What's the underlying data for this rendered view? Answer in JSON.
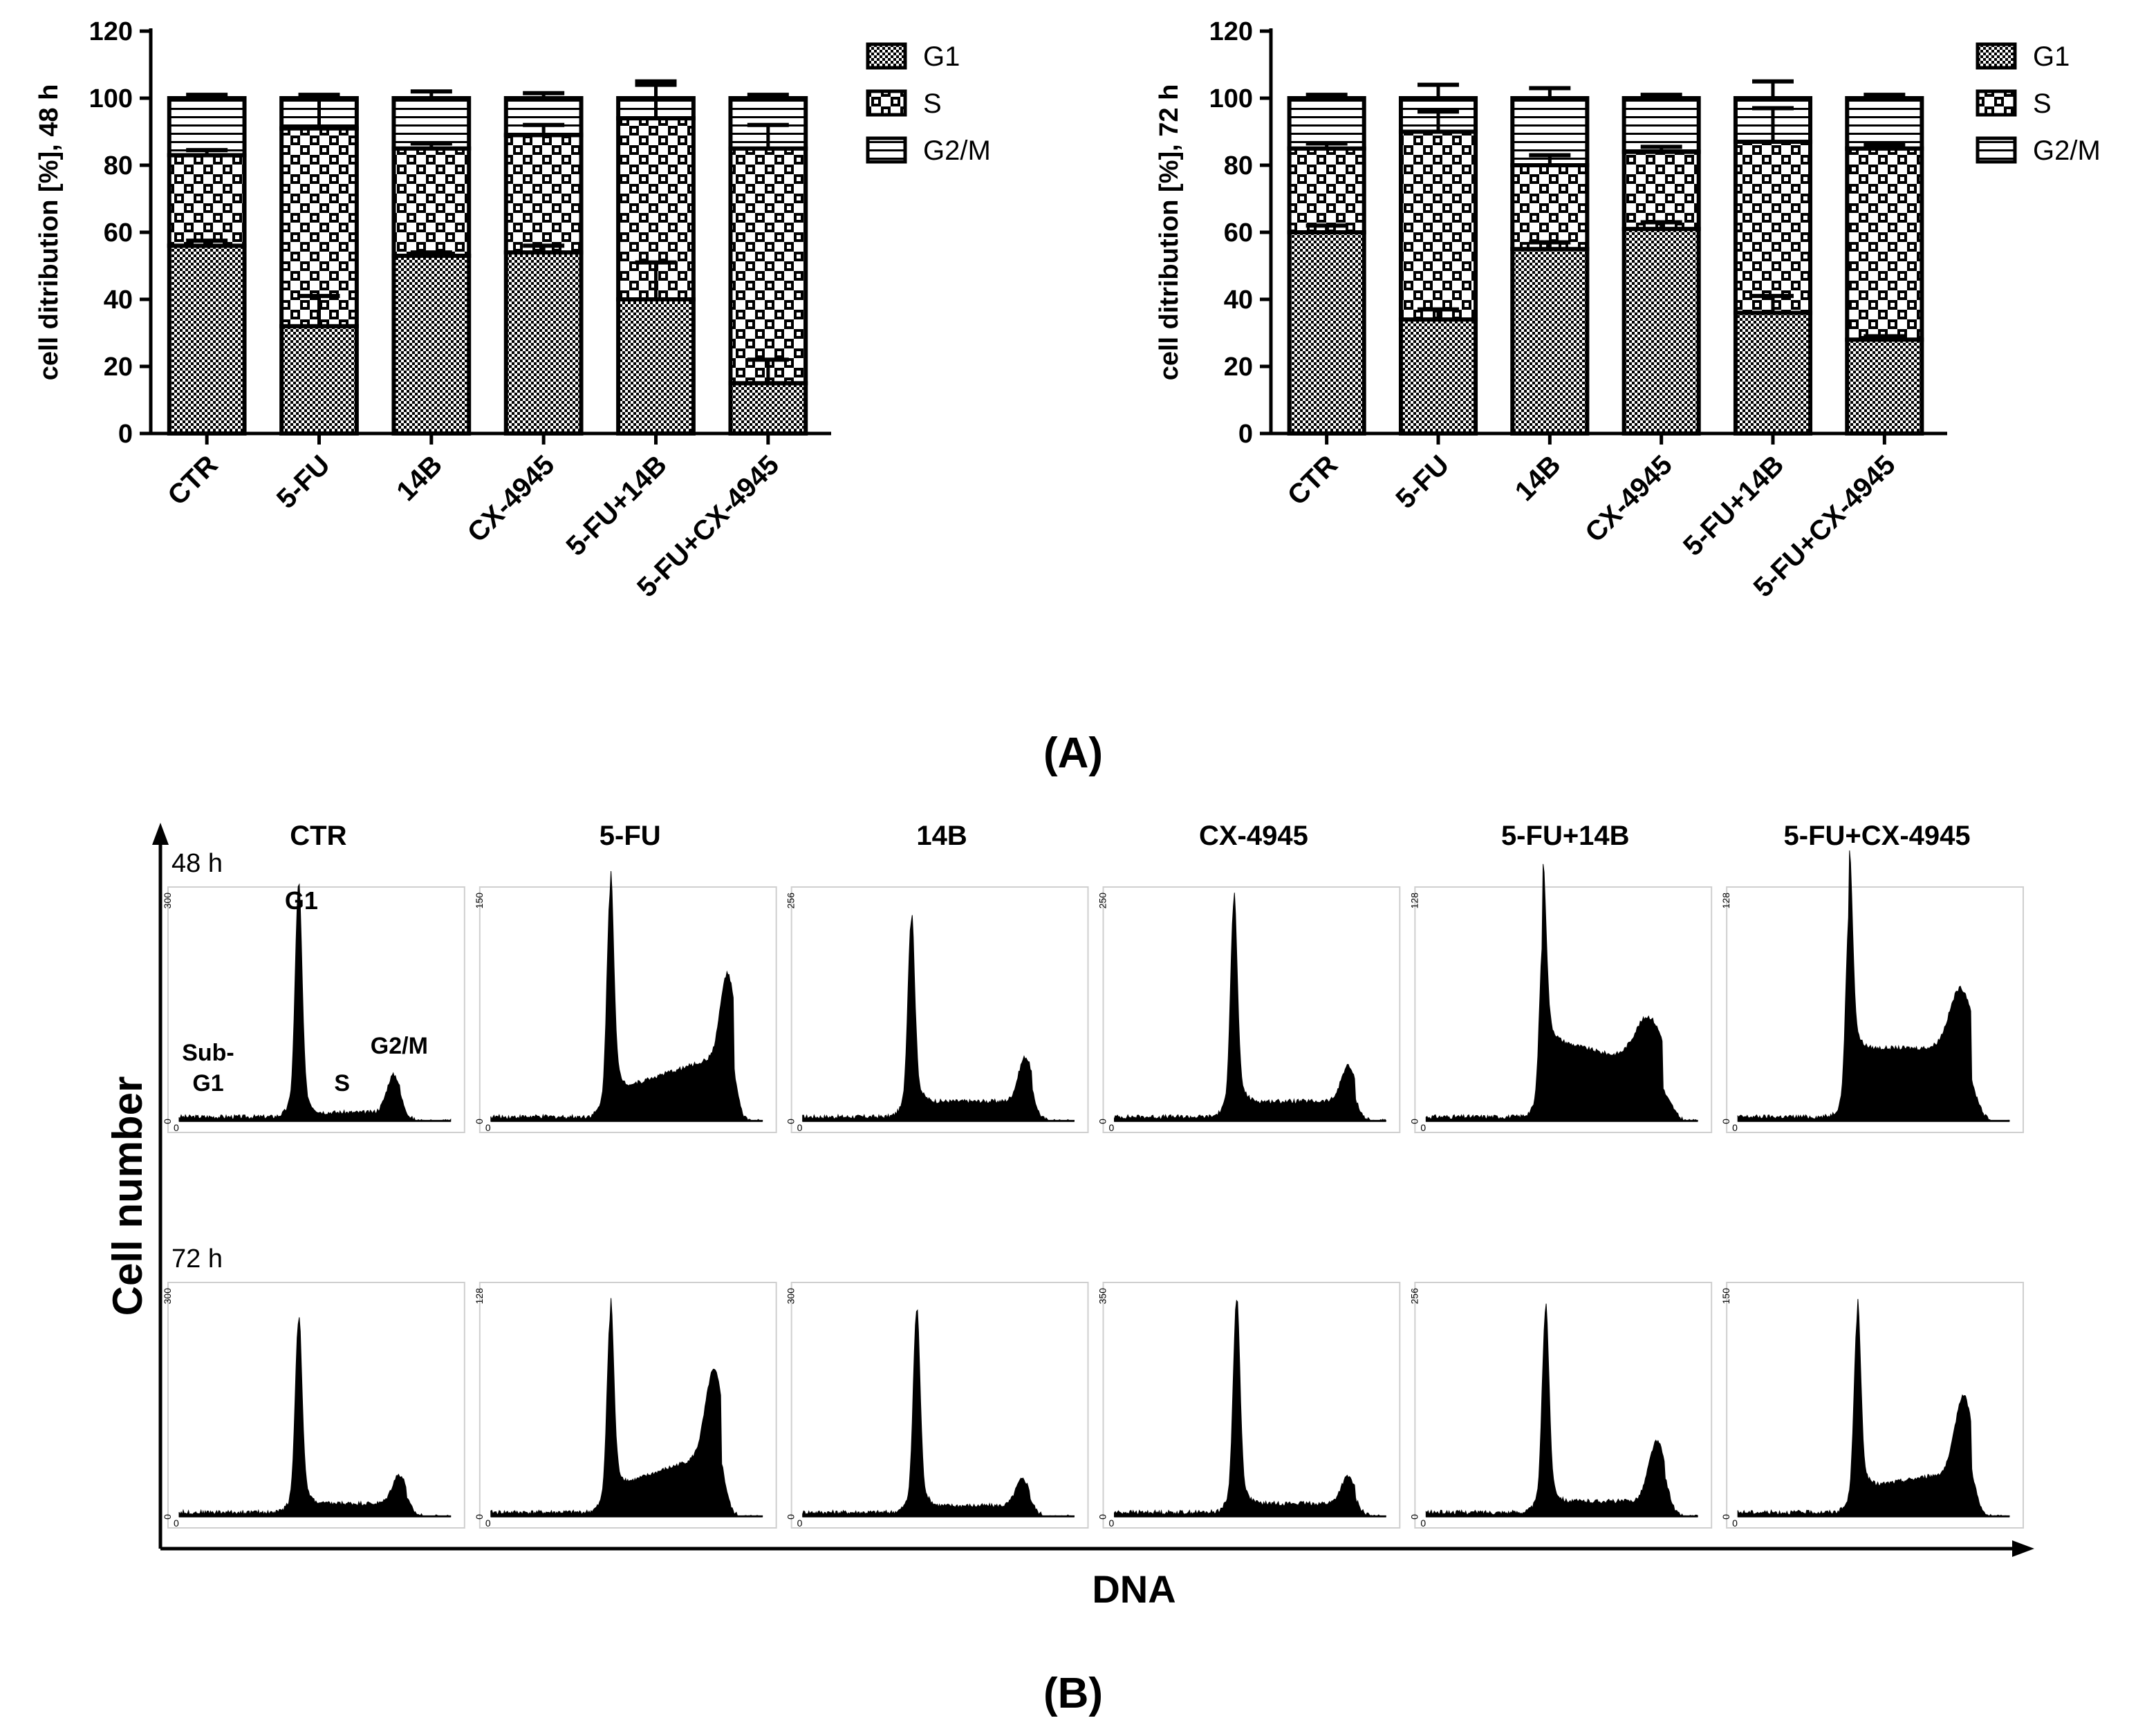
{
  "panel_A_label": "(A)",
  "panel_B_label": "(B)",
  "colors": {
    "black": "#000000",
    "white": "#ffffff"
  },
  "legend": {
    "items": [
      "G1",
      "S",
      "G2/M"
    ],
    "patterns": [
      "fine-check-pattern",
      "coarse-check-pattern",
      "horizontal-line-pattern"
    ]
  },
  "chart_data": [
    {
      "type": "bar",
      "stacked": true,
      "title": "",
      "ylabel": "cell ditribution [%], 48 h",
      "xlabel": "",
      "ylim": [
        0,
        120
      ],
      "yticks": [
        0,
        20,
        40,
        60,
        80,
        100,
        120
      ],
      "categories": [
        "CTR",
        "5-FU",
        "14B",
        "CX-4945",
        "5-FU+14B",
        "5-FU+CX-4945"
      ],
      "series": [
        {
          "name": "G1",
          "values": [
            56,
            32,
            53,
            54,
            40,
            15
          ],
          "errors": [
            1.5,
            9,
            1,
            2,
            11,
            7
          ]
        },
        {
          "name": "S",
          "values": [
            27,
            59,
            32,
            35,
            54,
            70
          ],
          "errors": [
            1.5,
            9,
            1.5,
            3,
            11,
            7
          ]
        },
        {
          "name": "G2/M",
          "values": [
            17,
            9,
            15,
            11,
            6,
            15
          ],
          "errors": [
            1,
            1,
            2,
            1.5,
            4,
            1
          ]
        }
      ],
      "legend_position": "top-right"
    },
    {
      "type": "bar",
      "stacked": true,
      "title": "",
      "ylabel": "cell ditribution [%], 72 h",
      "xlabel": "",
      "ylim": [
        0,
        120
      ],
      "yticks": [
        0,
        20,
        40,
        60,
        80,
        100,
        120
      ],
      "categories": [
        "CTR",
        "5-FU",
        "14B",
        "CX-4945",
        "5-FU+14B",
        "5-FU+CX-4945"
      ],
      "series": [
        {
          "name": "G1",
          "values": [
            60,
            34,
            55,
            61,
            36,
            28
          ],
          "errors": [
            2,
            3,
            2,
            2,
            5,
            1
          ]
        },
        {
          "name": "S",
          "values": [
            25,
            56,
            25,
            23,
            51,
            57
          ],
          "errors": [
            1.5,
            6,
            3,
            1.5,
            10,
            1
          ]
        },
        {
          "name": "G2/M",
          "values": [
            15,
            10,
            20,
            16,
            13,
            15
          ],
          "errors": [
            1,
            4,
            3,
            1,
            5,
            1
          ]
        }
      ],
      "legend_position": "top-right"
    },
    {
      "type": "histogram-grid",
      "xlabel": "DNA",
      "ylabel": "Cell number",
      "columns": [
        "CTR",
        "5-FU",
        "14B",
        "CX-4945",
        "5-FU+14B",
        "5-FU+CX-4945"
      ],
      "rows": [
        "48 h",
        "72 h"
      ],
      "phase_labels": [
        "G1",
        "Sub-\nG1",
        "S",
        "G2/M"
      ],
      "x_axis_zero": "0",
      "y_max_labels": [
        [
          "300",
          "150",
          "256",
          "250",
          "128",
          "128"
        ],
        [
          "300",
          "128",
          "300",
          "350",
          "256",
          "150"
        ]
      ],
      "profiles": [
        [
          {
            "g1_pos": 0.44,
            "g1_height": 0.93,
            "s_level": 0.02,
            "g2_pos": 0.79,
            "g2_height": 0.17,
            "g2_width": 0.025,
            "s_ramp": 0
          },
          {
            "g1_pos": 0.44,
            "g1_height": 0.91,
            "s_level": 0.19,
            "g2_pos": 0.87,
            "g2_height": 0.36,
            "g2_width": 0.025,
            "s_ramp": 1
          },
          {
            "g1_pos": 0.4,
            "g1_height": 0.79,
            "s_level": 0.07,
            "g2_pos": 0.82,
            "g2_height": 0.2,
            "g2_width": 0.025,
            "s_ramp": 0
          },
          {
            "g1_pos": 0.44,
            "g1_height": 0.85,
            "s_level": 0.07,
            "g2_pos": 0.86,
            "g2_height": 0.16,
            "g2_width": 0.025,
            "s_ramp": 0
          },
          {
            "g1_pos": 0.43,
            "g1_height": 0.7,
            "s_level": 0.33,
            "g2_pos": 0.82,
            "g2_height": 0.22,
            "g2_width": 0.05,
            "s_ramp": -1
          },
          {
            "g1_pos": 0.41,
            "g1_height": 0.81,
            "s_level": 0.31,
            "g2_pos": 0.82,
            "g2_height": 0.27,
            "g2_width": 0.04,
            "s_ramp": 0
          }
        ],
        [
          {
            "g1_pos": 0.44,
            "g1_height": 0.77,
            "s_level": 0.04,
            "g2_pos": 0.81,
            "g2_height": 0.13,
            "g2_width": 0.025,
            "s_ramp": 0
          },
          {
            "g1_pos": 0.44,
            "g1_height": 0.78,
            "s_level": 0.18,
            "g2_pos": 0.82,
            "g2_height": 0.37,
            "g2_width": 0.03,
            "s_ramp": 1
          },
          {
            "g1_pos": 0.42,
            "g1_height": 0.81,
            "s_level": 0.03,
            "g2_pos": 0.81,
            "g2_height": 0.12,
            "g2_width": 0.025,
            "s_ramp": 0
          },
          {
            "g1_pos": 0.45,
            "g1_height": 0.85,
            "s_level": 0.04,
            "g2_pos": 0.86,
            "g2_height": 0.12,
            "g2_width": 0.025,
            "s_ramp": 0
          },
          {
            "g1_pos": 0.44,
            "g1_height": 0.81,
            "s_level": 0.05,
            "g2_pos": 0.85,
            "g2_height": 0.27,
            "g2_width": 0.03,
            "s_ramp": 0
          },
          {
            "g1_pos": 0.44,
            "g1_height": 0.77,
            "s_level": 0.18,
            "g2_pos": 0.83,
            "g2_height": 0.34,
            "g2_width": 0.03,
            "s_ramp": 0.5
          }
        ]
      ]
    }
  ]
}
